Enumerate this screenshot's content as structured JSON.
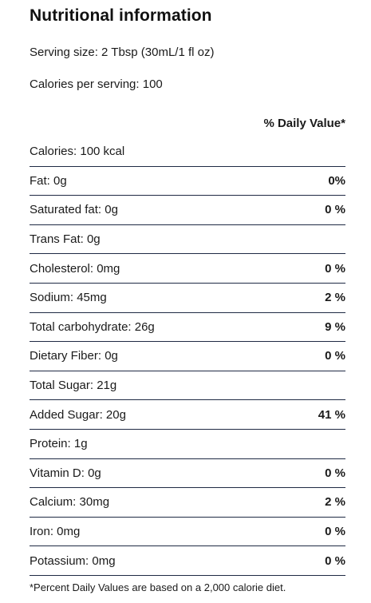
{
  "title": "Nutritional information",
  "serving_size": "Serving size: 2 Tbsp (30mL/1 fl oz)",
  "calories_per_serving": "Calories per serving: 100",
  "daily_value_header": "% Daily Value*",
  "rows": [
    {
      "label": "Calories: 100 kcal",
      "dv": ""
    },
    {
      "label": "Fat: 0g",
      "dv": "0%"
    },
    {
      "label": "Saturated fat: 0g",
      "dv": "0 %"
    },
    {
      "label": "Trans Fat: 0g",
      "dv": ""
    },
    {
      "label": "Cholesterol: 0mg",
      "dv": "0 %"
    },
    {
      "label": "Sodium: 45mg",
      "dv": "2 %"
    },
    {
      "label": "Total carbohydrate: 26g",
      "dv": "9 %"
    },
    {
      "label": "Dietary Fiber: 0g",
      "dv": "0 %"
    },
    {
      "label": "Total Sugar: 21g",
      "dv": ""
    },
    {
      "label": "Added Sugar: 20g",
      "dv": "41 %"
    },
    {
      "label": "Protein: 1g",
      "dv": ""
    },
    {
      "label": "Vitamin D: 0g",
      "dv": "0 %"
    },
    {
      "label": "Calcium: 30mg",
      "dv": "2 %"
    },
    {
      "label": "Iron: 0mg",
      "dv": "0 %"
    },
    {
      "label": "Potassium: 0mg",
      "dv": "0 %"
    }
  ],
  "footnote": "*Percent Daily Values are based on a 2,000 calorie diet.",
  "colors": {
    "divider": "#1f2a44",
    "text": "#1a1a1a"
  }
}
